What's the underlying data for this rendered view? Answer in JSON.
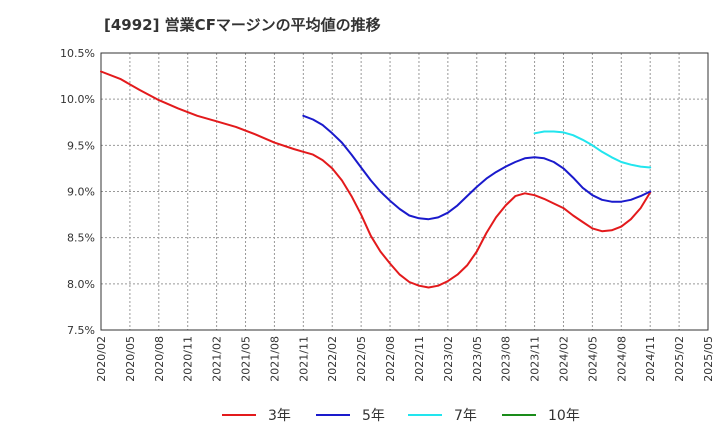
{
  "page": {
    "title": "[4992]  営業CFマージンの平均値の推移"
  },
  "chart_data": {
    "type": "line",
    "title": "[4992]  営業CFマージンの平均値の推移",
    "xlabel": "",
    "ylabel": "",
    "x_ticks": [
      "2020/02",
      "2020/05",
      "2020/08",
      "2020/11",
      "2021/02",
      "2021/05",
      "2021/08",
      "2021/11",
      "2022/02",
      "2022/05",
      "2022/08",
      "2022/11",
      "2023/02",
      "2023/05",
      "2023/08",
      "2023/11",
      "2024/02",
      "2024/05",
      "2024/08",
      "2024/11",
      "2025/02",
      "2025/05"
    ],
    "y_ticks": [
      "7.5%",
      "8.0%",
      "8.5%",
      "9.0%",
      "9.5%",
      "10.0%",
      "10.5%"
    ],
    "ylim": [
      7.5,
      10.5
    ],
    "grid": true,
    "legend_position": "bottom",
    "series": [
      {
        "name": "3年",
        "color": "#e31a1c",
        "x": [
          "2020/02",
          "2020/04",
          "2020/06",
          "2020/08",
          "2020/10",
          "2020/12",
          "2021/02",
          "2021/04",
          "2021/06",
          "2021/08",
          "2021/10",
          "2021/11",
          "2021/12",
          "2022/01",
          "2022/02",
          "2022/03",
          "2022/04",
          "2022/05",
          "2022/06",
          "2022/07",
          "2022/08",
          "2022/09",
          "2022/10",
          "2022/11",
          "2022/12",
          "2023/01",
          "2023/02",
          "2023/03",
          "2023/04",
          "2023/05",
          "2023/06",
          "2023/07",
          "2023/08",
          "2023/09",
          "2023/10",
          "2023/11",
          "2023/12",
          "2024/01",
          "2024/02",
          "2024/03",
          "2024/04",
          "2024/05",
          "2024/06",
          "2024/07",
          "2024/08",
          "2024/09",
          "2024/10",
          "2024/11"
        ],
        "values": [
          10.3,
          10.22,
          10.1,
          9.99,
          9.9,
          9.82,
          9.76,
          9.7,
          9.62,
          9.53,
          9.46,
          9.43,
          9.4,
          9.34,
          9.25,
          9.12,
          8.95,
          8.75,
          8.52,
          8.35,
          8.22,
          8.1,
          8.02,
          7.98,
          7.96,
          7.98,
          8.03,
          8.1,
          8.2,
          8.35,
          8.55,
          8.72,
          8.85,
          8.95,
          8.98,
          8.96,
          8.92,
          8.87,
          8.82,
          8.74,
          8.67,
          8.6,
          8.57,
          8.58,
          8.62,
          8.7,
          8.82,
          8.99
        ]
      },
      {
        "name": "5年",
        "color": "#1a1acc",
        "x": [
          "2021/11",
          "2021/12",
          "2022/01",
          "2022/02",
          "2022/03",
          "2022/04",
          "2022/05",
          "2022/06",
          "2022/07",
          "2022/08",
          "2022/09",
          "2022/10",
          "2022/11",
          "2022/12",
          "2023/01",
          "2023/02",
          "2023/03",
          "2023/04",
          "2023/05",
          "2023/06",
          "2023/07",
          "2023/08",
          "2023/09",
          "2023/10",
          "2023/11",
          "2023/12",
          "2024/01",
          "2024/02",
          "2024/03",
          "2024/04",
          "2024/05",
          "2024/06",
          "2024/07",
          "2024/08",
          "2024/09",
          "2024/10",
          "2024/11"
        ],
        "values": [
          9.82,
          9.78,
          9.72,
          9.63,
          9.53,
          9.4,
          9.26,
          9.12,
          9.0,
          8.9,
          8.81,
          8.74,
          8.71,
          8.7,
          8.72,
          8.77,
          8.85,
          8.95,
          9.05,
          9.14,
          9.21,
          9.27,
          9.32,
          9.36,
          9.37,
          9.36,
          9.32,
          9.25,
          9.15,
          9.04,
          8.96,
          8.91,
          8.89,
          8.89,
          8.91,
          8.95,
          9.0
        ]
      },
      {
        "name": "7年",
        "color": "#22e5ee",
        "x": [
          "2023/11",
          "2023/12",
          "2024/01",
          "2024/02",
          "2024/03",
          "2024/04",
          "2024/05",
          "2024/06",
          "2024/07",
          "2024/08",
          "2024/09",
          "2024/10",
          "2024/11"
        ],
        "values": [
          9.63,
          9.65,
          9.65,
          9.64,
          9.61,
          9.56,
          9.5,
          9.43,
          9.37,
          9.32,
          9.29,
          9.27,
          9.26
        ]
      },
      {
        "name": "10年",
        "color": "#1a8c1a",
        "x": [],
        "values": []
      }
    ]
  }
}
